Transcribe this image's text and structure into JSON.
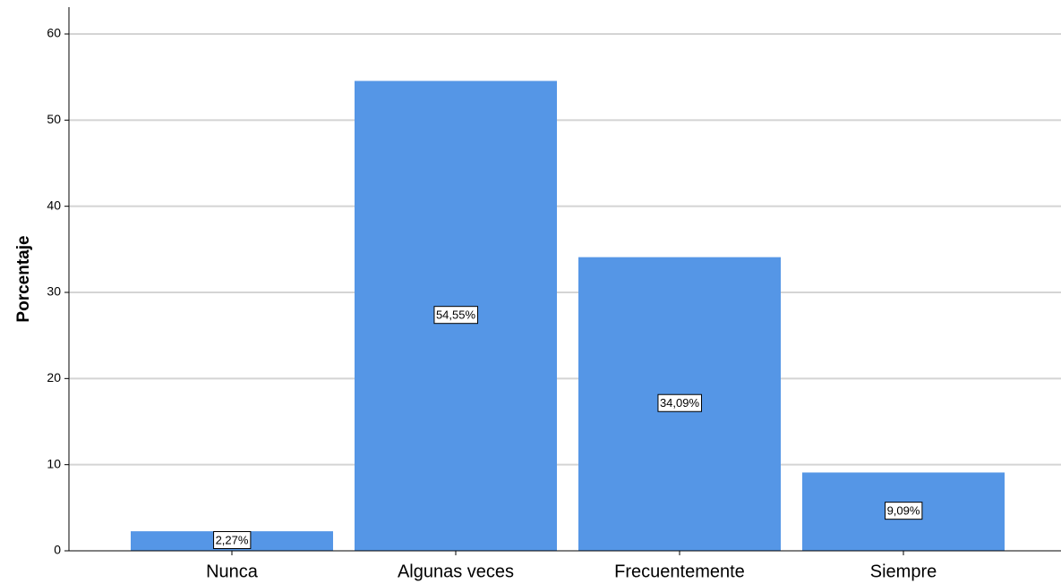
{
  "chart_data": {
    "type": "bar",
    "categories": [
      "Nunca",
      "Algunas veces",
      "Frecuentemente",
      "Siempre"
    ],
    "values": [
      2.27,
      54.55,
      34.09,
      9.09
    ],
    "data_labels": [
      "2,27%",
      "54,55%",
      "34,09%",
      "9,09%"
    ],
    "ylabel": "Porcentaje",
    "ylim": [
      0,
      60
    ],
    "yticks": [
      "0",
      "10",
      "20",
      "30",
      "40",
      "50",
      "60"
    ],
    "grid": true,
    "colors": {
      "bar": "#5596e6",
      "grid": "#d4d4d4",
      "axis": "#000000"
    }
  }
}
